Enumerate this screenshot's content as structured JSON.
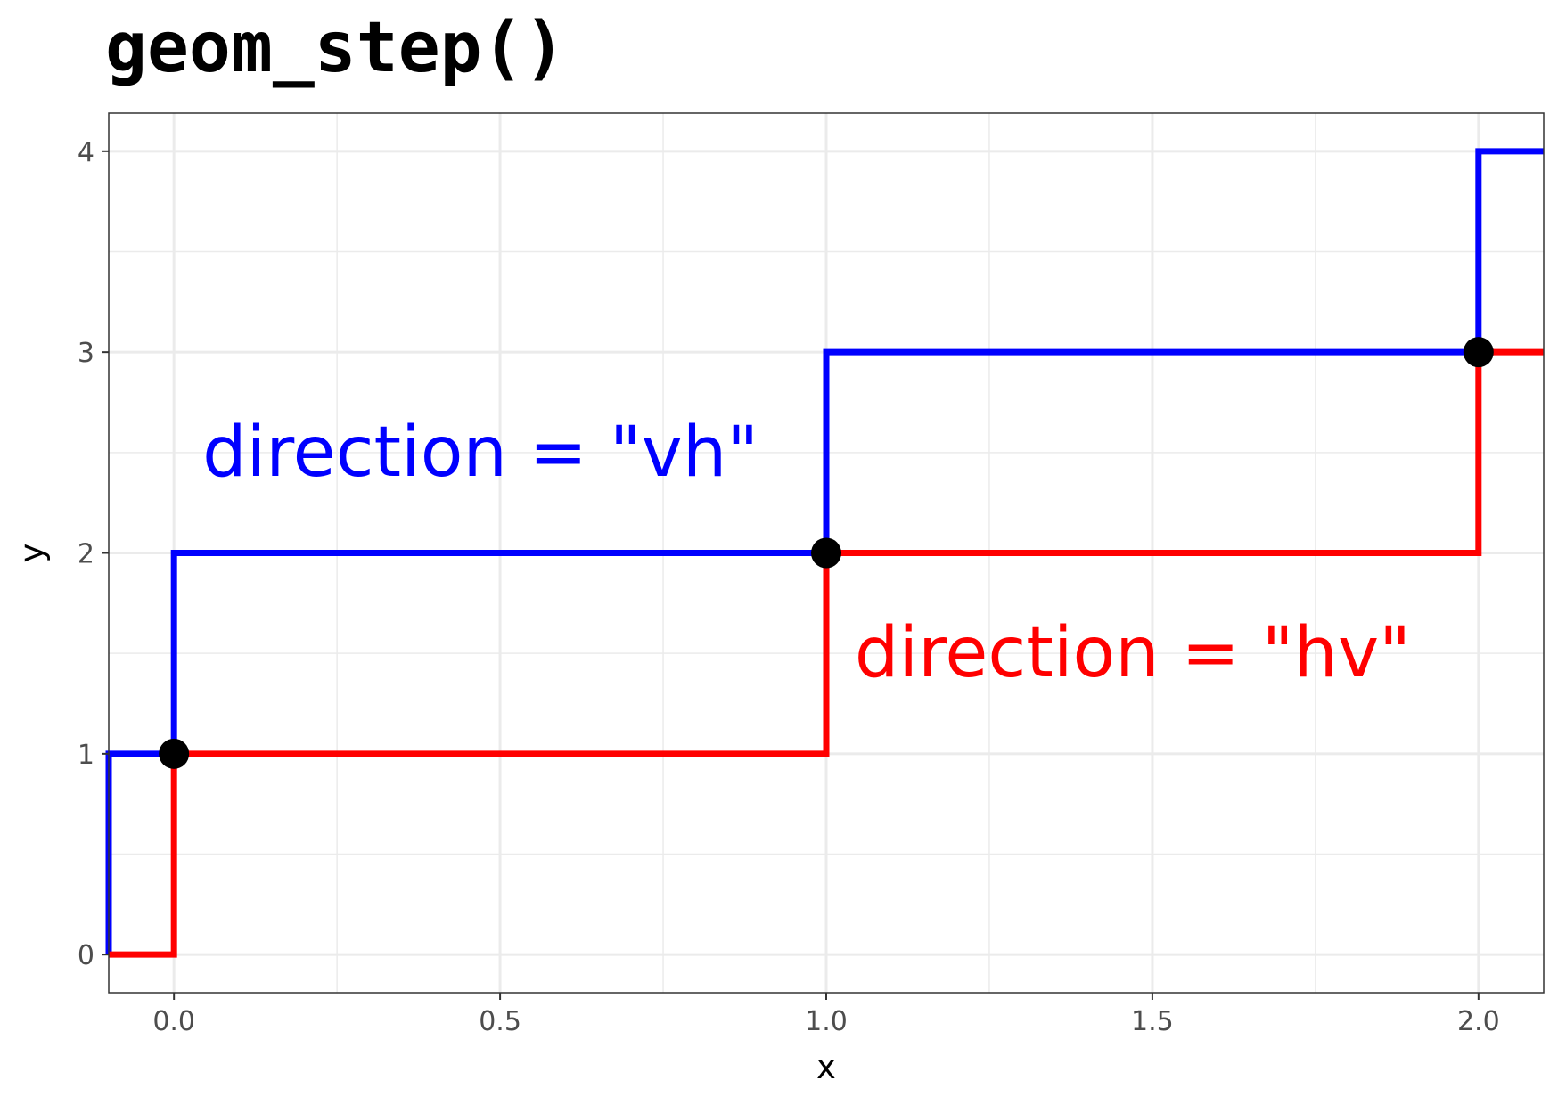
{
  "chart_data": {
    "type": "line",
    "title": "geom_step()",
    "xlabel": "x",
    "ylabel": "y",
    "xlim": [
      -0.1,
      2.1
    ],
    "ylim": [
      -0.19,
      4.19
    ],
    "x_ticks": [
      "0.0",
      "0.5",
      "1.0",
      "1.5",
      "2.0"
    ],
    "y_ticks": [
      "0",
      "1",
      "2",
      "3",
      "4"
    ],
    "grid": true,
    "points": {
      "x": [
        0,
        1,
        2
      ],
      "y": [
        1,
        2,
        3
      ],
      "color": "#000000"
    },
    "series": [
      {
        "direction": "vh",
        "color": "#0000ff",
        "x": [
          -0.1,
          -0.1,
          0,
          0,
          1,
          1,
          2,
          2,
          2.1
        ],
        "y": [
          0,
          1,
          1,
          2,
          2,
          3,
          3,
          4,
          4
        ]
      },
      {
        "direction": "hv",
        "color": "#ff0000",
        "x": [
          -0.1,
          0,
          0,
          1,
          1,
          2,
          2,
          2.1
        ],
        "y": [
          0,
          0,
          1,
          1,
          2,
          2,
          3,
          3
        ]
      }
    ],
    "annotations": [
      {
        "text": "direction = \"vh\"",
        "x": 0.47,
        "y": 2.5,
        "color": "#0000ff"
      },
      {
        "text": "direction = \"hv\"",
        "x": 1.47,
        "y": 1.5,
        "color": "#ff0000"
      }
    ]
  }
}
